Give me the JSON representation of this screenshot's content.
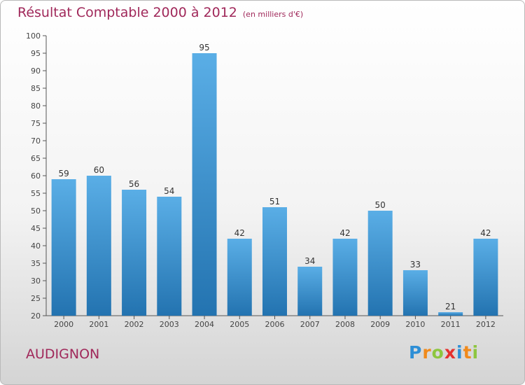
{
  "title": "Résultat Comptable 2000 à 2012",
  "subtitle": "(en milliers d'€)",
  "commune": "AUDIGNON",
  "brand": {
    "letters": [
      "P",
      "r",
      "o",
      "x",
      "i",
      "t",
      "i"
    ],
    "colors": [
      "#2e8fd6",
      "#f08a1c",
      "#8dc63f",
      "#e5312e",
      "#2e8fd6",
      "#f08a1c",
      "#8dc63f"
    ]
  },
  "colors": {
    "bar_top": "#5aaee6",
    "bar_bottom": "#2373b0",
    "title": "#a0285a"
  },
  "chart_data": {
    "type": "bar",
    "title": "Résultat Comptable 2000 à 2012",
    "xlabel": "",
    "ylabel": "(en milliers d'€)",
    "categories": [
      "2000",
      "2001",
      "2002",
      "2003",
      "2004",
      "2005",
      "2006",
      "2007",
      "2008",
      "2009",
      "2010",
      "2011",
      "2012"
    ],
    "values": [
      59,
      60,
      56,
      54,
      95,
      42,
      51,
      34,
      42,
      50,
      33,
      21,
      42
    ],
    "ylim": [
      20,
      100
    ],
    "yticks": [
      20,
      25,
      30,
      35,
      40,
      45,
      50,
      55,
      60,
      65,
      70,
      75,
      80,
      85,
      90,
      95,
      100
    ],
    "grid": false
  }
}
